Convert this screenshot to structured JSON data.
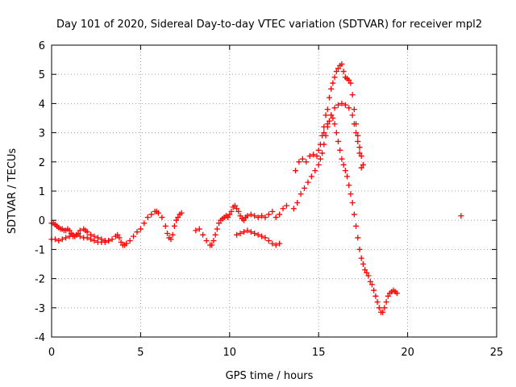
{
  "chart_data": {
    "type": "scatter",
    "title": "Day 101 of 2020, Sidereal Day-to-day VTEC variation (SDTVAR) for receiver mpl2",
    "xlabel": "GPS time / hours",
    "ylabel": "SDTVAR / TECUs",
    "xlim": [
      0,
      25
    ],
    "ylim": [
      -4,
      6
    ],
    "xticks": [
      0,
      5,
      10,
      15,
      20,
      25
    ],
    "yticks": [
      -4,
      -3,
      -2,
      -1,
      0,
      1,
      2,
      3,
      4,
      5,
      6
    ],
    "grid": true,
    "marker": "plus",
    "color": "#ff0000",
    "series": [
      {
        "x": [
          0.0,
          0.1,
          0.2,
          0.3,
          0.4,
          0.5,
          0.6,
          0.7,
          0.8,
          0.9,
          1.0,
          1.1,
          1.2,
          1.3,
          1.4,
          1.5,
          1.6,
          1.8,
          1.9,
          2.0,
          2.2,
          2.4,
          2.6,
          2.8,
          3.0,
          3.2,
          3.4,
          3.6,
          3.7,
          3.8,
          3.9,
          4.0,
          4.1,
          4.2,
          4.4,
          4.6,
          4.8,
          5.0,
          5.2,
          5.4,
          5.6,
          5.8,
          5.9,
          6.0,
          6.2,
          6.4,
          6.5,
          6.6,
          6.7,
          6.8,
          6.9,
          7.0,
          7.1,
          7.2,
          7.3
        ],
        "y": [
          -0.1,
          -0.1,
          -0.15,
          -0.2,
          -0.25,
          -0.3,
          -0.3,
          -0.35,
          -0.35,
          -0.3,
          -0.35,
          -0.45,
          -0.5,
          -0.55,
          -0.5,
          -0.45,
          -0.35,
          -0.3,
          -0.35,
          -0.4,
          -0.5,
          -0.55,
          -0.6,
          -0.65,
          -0.7,
          -0.7,
          -0.65,
          -0.55,
          -0.5,
          -0.6,
          -0.75,
          -0.85,
          -0.85,
          -0.8,
          -0.7,
          -0.55,
          -0.4,
          -0.3,
          -0.1,
          0.1,
          0.2,
          0.3,
          0.3,
          0.25,
          0.1,
          -0.2,
          -0.45,
          -0.6,
          -0.65,
          -0.5,
          -0.2,
          0.0,
          0.1,
          0.2,
          0.25
        ]
      },
      {
        "x": [
          0.0,
          0.2,
          0.4,
          0.6,
          0.8,
          1.0,
          1.2,
          1.4,
          1.6,
          1.8,
          2.0,
          2.2,
          2.4,
          2.6,
          2.8,
          3.0,
          3.2
        ],
        "y": [
          -0.65,
          -0.65,
          -0.7,
          -0.65,
          -0.6,
          -0.55,
          -0.55,
          -0.5,
          -0.55,
          -0.6,
          -0.6,
          -0.65,
          -0.7,
          -0.75,
          -0.75,
          -0.75,
          -0.7
        ]
      },
      {
        "x": [
          8.1,
          8.3,
          8.5,
          8.7,
          8.9,
          9.0,
          9.1,
          9.2,
          9.3,
          9.4,
          9.5,
          9.6,
          9.7,
          9.8,
          9.9,
          10.0,
          10.1,
          10.2,
          10.3,
          10.4,
          10.5,
          10.6,
          10.7,
          10.8,
          10.9,
          11.0,
          11.2,
          11.4,
          11.6,
          11.8,
          12.0,
          12.2,
          12.4,
          12.6,
          12.8,
          13.0,
          13.2
        ],
        "y": [
          -0.35,
          -0.3,
          -0.5,
          -0.7,
          -0.85,
          -0.85,
          -0.7,
          -0.5,
          -0.3,
          -0.1,
          0.0,
          0.05,
          0.1,
          0.15,
          0.1,
          0.2,
          0.3,
          0.45,
          0.5,
          0.4,
          0.3,
          0.15,
          0.05,
          0.0,
          0.1,
          0.15,
          0.2,
          0.15,
          0.1,
          0.15,
          0.1,
          0.2,
          0.3,
          0.1,
          0.2,
          0.4,
          0.5
        ]
      },
      {
        "x": [
          10.4,
          10.6,
          10.8,
          11.0,
          11.2,
          11.4,
          11.6,
          11.8,
          12.0,
          12.2,
          12.4,
          12.6,
          12.8
        ],
        "y": [
          -0.5,
          -0.45,
          -0.4,
          -0.35,
          -0.4,
          -0.45,
          -0.5,
          -0.55,
          -0.6,
          -0.7,
          -0.8,
          -0.85,
          -0.8
        ]
      },
      {
        "x": [
          13.6,
          13.8,
          14.0,
          14.2,
          14.4,
          14.6,
          14.8,
          15.0,
          15.1,
          15.2,
          15.3,
          15.4,
          15.5,
          15.6,
          15.7,
          15.8,
          15.9,
          16.0,
          16.1,
          16.2,
          16.3,
          16.4,
          16.5,
          16.6,
          16.7,
          16.8,
          16.9,
          17.0,
          17.1,
          17.2,
          17.3,
          17.4,
          17.5,
          17.6,
          17.7,
          17.8,
          17.9,
          18.0,
          18.1,
          18.2,
          18.3,
          18.4,
          18.5,
          18.6,
          18.7,
          18.8,
          18.9,
          19.0,
          19.1,
          19.2,
          19.3,
          19.4
        ],
        "y": [
          0.4,
          0.6,
          0.9,
          1.1,
          1.3,
          1.5,
          1.7,
          1.9,
          2.1,
          2.3,
          2.6,
          2.9,
          3.2,
          3.4,
          3.6,
          3.5,
          3.3,
          3.0,
          2.7,
          2.4,
          2.1,
          1.9,
          1.7,
          1.5,
          1.2,
          0.9,
          0.6,
          0.2,
          -0.2,
          -0.6,
          -1.0,
          -1.3,
          -1.5,
          -1.7,
          -1.8,
          -1.9,
          -2.1,
          -2.2,
          -2.4,
          -2.6,
          -2.8,
          -3.0,
          -3.15,
          -3.15,
          -3.0,
          -2.8,
          -2.6,
          -2.5,
          -2.45,
          -2.4,
          -2.45,
          -2.5
        ]
      },
      {
        "x": [
          13.7,
          13.9,
          14.1,
          14.3,
          14.5,
          14.7,
          14.9,
          15.0,
          15.1,
          15.2,
          15.3,
          15.4,
          15.5,
          15.6,
          15.7,
          15.8,
          15.9,
          16.0,
          16.1,
          16.2,
          16.3,
          16.4,
          16.5,
          16.6,
          16.7,
          16.8,
          16.9,
          17.0,
          17.1,
          17.2,
          17.3,
          17.4,
          17.5
        ],
        "y": [
          1.7,
          2.0,
          2.1,
          2.0,
          2.2,
          2.25,
          2.2,
          2.4,
          2.6,
          2.9,
          3.2,
          3.6,
          3.8,
          4.2,
          4.5,
          4.7,
          4.9,
          5.1,
          5.2,
          5.3,
          5.35,
          5.1,
          4.9,
          4.85,
          4.8,
          4.7,
          4.3,
          3.8,
          3.3,
          2.9,
          2.5,
          2.2,
          1.9
        ]
      },
      {
        "x": [
          15.3,
          15.5,
          15.7,
          15.9,
          16.1,
          16.3,
          16.5,
          16.7,
          16.9,
          17.0,
          17.1,
          17.2,
          17.3,
          17.4
        ],
        "y": [
          3.0,
          3.3,
          3.6,
          3.85,
          3.95,
          4.0,
          3.95,
          3.85,
          3.6,
          3.3,
          3.0,
          2.7,
          2.3,
          1.8
        ]
      },
      {
        "x": [
          23.0
        ],
        "y": [
          0.15
        ]
      }
    ]
  }
}
